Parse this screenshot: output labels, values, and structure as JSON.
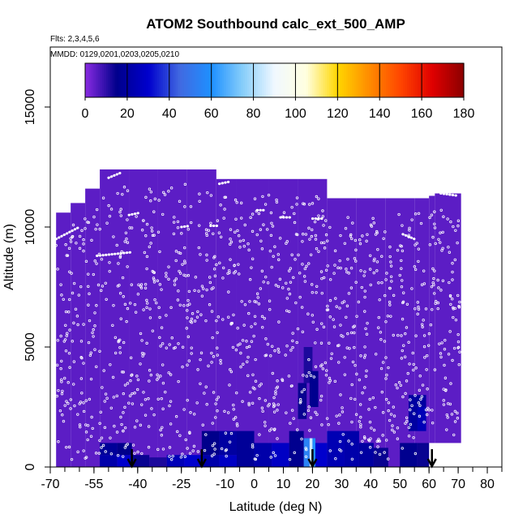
{
  "chart_data": {
    "type": "heatmap",
    "title": "ATOM2 Southbound calc_ext_500_AMP",
    "flights_note": "Flts: 2,3,4,5,6",
    "dates_note": "MMDD: 0129,0201,0203,0205,0210",
    "xlabel": "Latitude (deg N)",
    "ylabel": "Altitude (m)",
    "xlim": [
      -70,
      85
    ],
    "ylim": [
      0,
      17500
    ],
    "x_ticks": [
      -70,
      -55,
      -40,
      -25,
      -10,
      0,
      10,
      20,
      30,
      40,
      50,
      60,
      70,
      80
    ],
    "y_ticks": [
      0,
      5000,
      10000,
      15000
    ],
    "colorbar": {
      "range": [
        0,
        180
      ],
      "ticks": [
        0,
        20,
        40,
        60,
        80,
        100,
        120,
        140,
        160,
        180
      ],
      "colors": [
        "#8a2be2",
        "#00008b",
        "#0000cd",
        "#4169e1",
        "#1e90ff",
        "#87cefa",
        "#f0f8ff",
        "#ffffe0",
        "#ffd700",
        "#ff8c00",
        "#ff4500",
        "#e00000",
        "#8b0000"
      ]
    },
    "background_value": 5,
    "coverage_columns": [
      {
        "lat": [
          -68,
          -63
        ],
        "top": 10600
      },
      {
        "lat": [
          -63,
          -58
        ],
        "top": 11000
      },
      {
        "lat": [
          -58,
          -53
        ],
        "top": 11600
      },
      {
        "lat": [
          -53,
          -43
        ],
        "top": 12400
      },
      {
        "lat": [
          -43,
          -33
        ],
        "top": 12400
      },
      {
        "lat": [
          -33,
          -23
        ],
        "top": 12400
      },
      {
        "lat": [
          -23,
          -13
        ],
        "top": 12400
      },
      {
        "lat": [
          -13,
          -6
        ],
        "top": 12000
      },
      {
        "lat": [
          -6,
          5
        ],
        "top": 12000
      },
      {
        "lat": [
          5,
          15
        ],
        "top": 12000
      },
      {
        "lat": [
          15,
          25
        ],
        "top": 12000
      },
      {
        "lat": [
          25,
          35
        ],
        "top": 11200
      },
      {
        "lat": [
          35,
          45
        ],
        "top": 11200
      },
      {
        "lat": [
          45,
          55
        ],
        "top": 11200
      },
      {
        "lat": [
          55,
          60
        ],
        "top": 11200
      },
      {
        "lat": [
          60,
          62
        ],
        "top": 11300
      },
      {
        "lat": [
          62,
          69
        ],
        "top": 11400
      },
      {
        "lat": [
          69,
          71
        ],
        "top": 11400
      }
    ],
    "coverage_bottom": [
      {
        "lat": [
          -68,
          20
        ],
        "bottom": 0
      },
      {
        "lat": [
          20,
          60
        ],
        "bottom": 0
      },
      {
        "lat": [
          60,
          69
        ],
        "bottom": 1000
      },
      {
        "lat": [
          69,
          71
        ],
        "bottom": 1000
      }
    ],
    "enhanced_cells": [
      {
        "lat": [
          -53,
          -47
        ],
        "alt": [
          0,
          500
        ],
        "value": 22
      },
      {
        "lat": [
          -53,
          -47
        ],
        "alt": [
          500,
          1000
        ],
        "value": 18
      },
      {
        "lat": [
          -47,
          -42
        ],
        "alt": [
          0,
          500
        ],
        "value": 30
      },
      {
        "lat": [
          -47,
          -42
        ],
        "alt": [
          500,
          1000
        ],
        "value": 15
      },
      {
        "lat": [
          -42,
          -36
        ],
        "alt": [
          0,
          500
        ],
        "value": 14
      },
      {
        "lat": [
          -36,
          -30
        ],
        "alt": [
          0,
          400
        ],
        "value": 12
      },
      {
        "lat": [
          -30,
          -24
        ],
        "alt": [
          0,
          500
        ],
        "value": 25
      },
      {
        "lat": [
          -24,
          -18
        ],
        "alt": [
          0,
          500
        ],
        "value": 30
      },
      {
        "lat": [
          -18,
          -12
        ],
        "alt": [
          0,
          500
        ],
        "value": 22
      },
      {
        "lat": [
          -18,
          -12
        ],
        "alt": [
          500,
          1500
        ],
        "value": 15
      },
      {
        "lat": [
          -12,
          -6
        ],
        "alt": [
          0,
          500
        ],
        "value": 28
      },
      {
        "lat": [
          -12,
          -6
        ],
        "alt": [
          500,
          1500
        ],
        "value": 20
      },
      {
        "lat": [
          -6,
          0
        ],
        "alt": [
          0,
          1500
        ],
        "value": 18
      },
      {
        "lat": [
          0,
          6
        ],
        "alt": [
          0,
          1000
        ],
        "value": 22
      },
      {
        "lat": [
          6,
          12
        ],
        "alt": [
          0,
          1000
        ],
        "value": 28
      },
      {
        "lat": [
          12,
          17
        ],
        "alt": [
          0,
          1500
        ],
        "value": 16
      },
      {
        "lat": [
          17,
          19
        ],
        "alt": [
          0,
          1200
        ],
        "value": 55
      },
      {
        "lat": [
          19,
          20
        ],
        "alt": [
          0,
          1200
        ],
        "value": 85
      },
      {
        "lat": [
          20,
          21
        ],
        "alt": [
          0,
          1200
        ],
        "value": 60
      },
      {
        "lat": [
          21,
          25
        ],
        "alt": [
          0,
          1000
        ],
        "value": 30
      },
      {
        "lat": [
          25,
          31
        ],
        "alt": [
          0,
          1500
        ],
        "value": 24
      },
      {
        "lat": [
          31,
          36
        ],
        "alt": [
          0,
          1500
        ],
        "value": 22
      },
      {
        "lat": [
          36,
          41
        ],
        "alt": [
          0,
          1000
        ],
        "value": 20
      },
      {
        "lat": [
          41,
          46
        ],
        "alt": [
          0,
          800
        ],
        "value": 14
      },
      {
        "lat": [
          15,
          18
        ],
        "alt": [
          2000,
          3500
        ],
        "value": 14
      },
      {
        "lat": [
          17,
          20
        ],
        "alt": [
          3500,
          5000
        ],
        "value": 12
      },
      {
        "lat": [
          19,
          22
        ],
        "alt": [
          2500,
          4000
        ],
        "value": 16
      },
      {
        "lat": [
          53,
          59
        ],
        "alt": [
          1500,
          3000
        ],
        "value": 20
      },
      {
        "lat": [
          50,
          56
        ],
        "alt": [
          0,
          1000
        ],
        "value": 16
      },
      {
        "lat": [
          56,
          60
        ],
        "alt": [
          0,
          1000
        ],
        "value": 14
      },
      {
        "lat": [
          56,
          59
        ],
        "alt": [
          1500,
          2500
        ],
        "value": 25
      }
    ],
    "flight_tracks": [
      {
        "lat": [
          -68,
          -60
        ],
        "alt": [
          9500,
          10000
        ]
      },
      {
        "lat": [
          -54,
          -42
        ],
        "alt": [
          8800,
          8950
        ]
      },
      {
        "lat": [
          -50,
          -46
        ],
        "alt": [
          12050,
          12250
        ]
      },
      {
        "lat": [
          -43,
          -39
        ],
        "alt": [
          10500,
          10600
        ]
      },
      {
        "lat": [
          -25,
          -22
        ],
        "alt": [
          10000,
          10050
        ]
      },
      {
        "lat": [
          -15,
          -12
        ],
        "alt": [
          10050,
          10050
        ]
      },
      {
        "lat": [
          -12,
          -8
        ],
        "alt": [
          11800,
          11900
        ]
      },
      {
        "lat": [
          1,
          4
        ],
        "alt": [
          10700,
          10700
        ]
      },
      {
        "lat": [
          9,
          13
        ],
        "alt": [
          10400,
          10400
        ]
      },
      {
        "lat": [
          20,
          24
        ],
        "alt": [
          10350,
          10350
        ]
      },
      {
        "lat": [
          51,
          55
        ],
        "alt": [
          9700,
          9500
        ]
      },
      {
        "lat": [
          64,
          70
        ],
        "alt": [
          11400,
          11300
        ]
      }
    ],
    "sounding_markers_lat": [
      -42,
      -18,
      20,
      61
    ]
  }
}
